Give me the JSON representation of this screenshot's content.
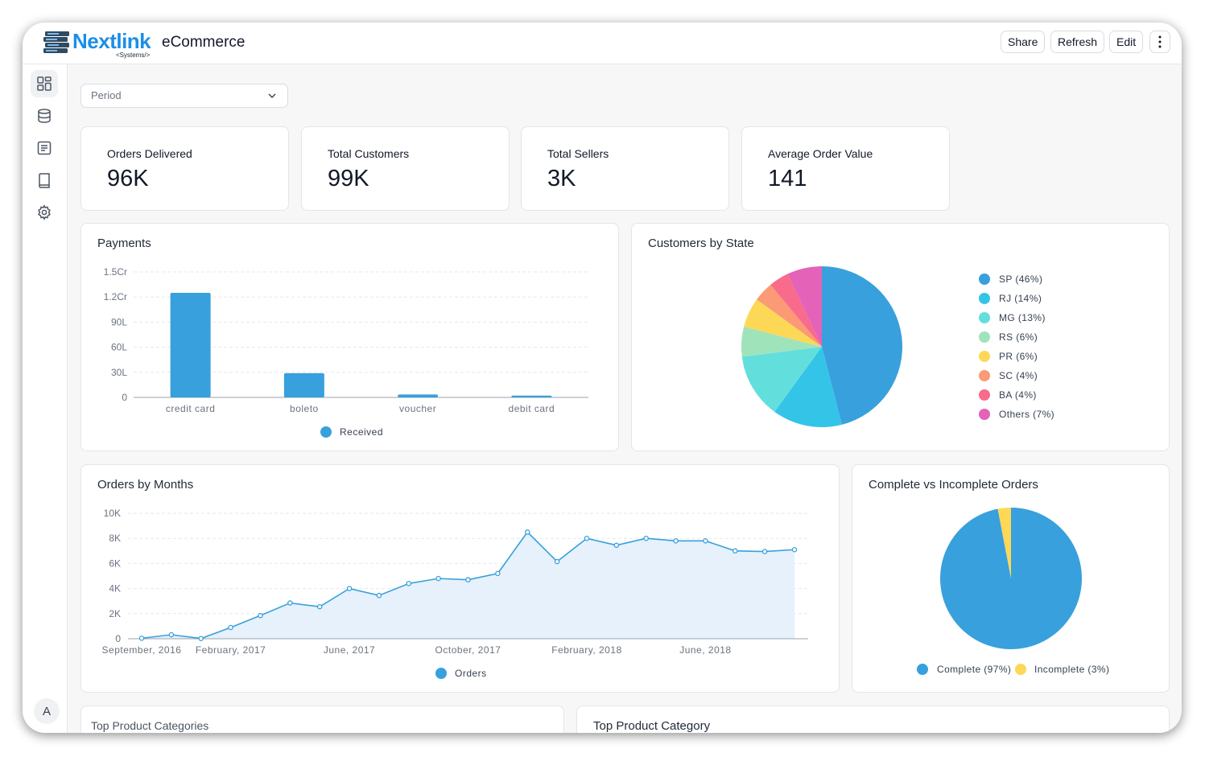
{
  "header": {
    "logo_text": "Nextlink",
    "logo_subtext": "<Systems/>",
    "app_title": "eCommerce",
    "buttons": {
      "share": "Share",
      "refresh": "Refresh",
      "edit": "Edit"
    }
  },
  "sidebar": {
    "icons": [
      "dashboard-icon",
      "database-icon",
      "list-icon",
      "book-icon",
      "gear-icon"
    ],
    "avatar_initial": "A"
  },
  "filters": {
    "period_placeholder": "Period"
  },
  "kpis": [
    {
      "label": "Orders Delivered",
      "value": "96K"
    },
    {
      "label": "Total Customers",
      "value": "99K"
    },
    {
      "label": "Total Sellers",
      "value": "3K"
    },
    {
      "label": "Average Order Value",
      "value": "141"
    }
  ],
  "cards": {
    "payments_title": "Payments",
    "customers_title": "Customers by State",
    "orders_title": "Orders by Months",
    "complete_title": "Complete vs Incomplete Orders",
    "top_categories_title": "Top Product Categories",
    "top_category_title": "Top Product Category"
  },
  "chart_data": [
    {
      "type": "bar",
      "title": "Payments",
      "categories": [
        "credit card",
        "boleto",
        "voucher",
        "debit card"
      ],
      "series": [
        {
          "name": "Received",
          "values": [
            12500000,
            2900000,
            350000,
            220000
          ]
        }
      ],
      "yticks": [
        "0",
        "30L",
        "60L",
        "90L",
        "1.2Cr",
        "1.5Cr"
      ],
      "ylim": [
        0,
        15000000
      ],
      "color": "#38a0dc"
    },
    {
      "type": "pie",
      "title": "Customers by State",
      "slices": [
        {
          "label": "SP (46%)",
          "value": 46,
          "color": "#38a0dc"
        },
        {
          "label": "RJ (14%)",
          "value": 14,
          "color": "#34c4e8"
        },
        {
          "label": "MG (13%)",
          "value": 13,
          "color": "#62dedd"
        },
        {
          "label": "RS (6%)",
          "value": 6,
          "color": "#9fe3bb"
        },
        {
          "label": "PR (6%)",
          "value": 6,
          "color": "#fcd856"
        },
        {
          "label": "SC (4%)",
          "value": 4,
          "color": "#fb9a74"
        },
        {
          "label": "BA (4%)",
          "value": 4,
          "color": "#f86b8b"
        },
        {
          "label": "Others (7%)",
          "value": 7,
          "color": "#e462b7"
        }
      ]
    },
    {
      "type": "area",
      "title": "Orders by Months",
      "series": [
        {
          "name": "Orders",
          "values": [
            40,
            320,
            20,
            900,
            1850,
            2850,
            2550,
            4000,
            3450,
            4400,
            4800,
            4700,
            5200,
            8500,
            6150,
            8000,
            7450,
            8000,
            7800,
            7800,
            7000,
            6950,
            7100
          ]
        }
      ],
      "xticks": [
        "September, 2016",
        "February, 2017",
        "June, 2017",
        "October, 2017",
        "February, 2018",
        "June, 2018"
      ],
      "xtick_indices": [
        0,
        3,
        7,
        11,
        15,
        19
      ],
      "yticks": [
        "0",
        "2K",
        "4K",
        "6K",
        "8K",
        "10K"
      ],
      "ylim": [
        0,
        10000
      ],
      "color": "#38a0dc"
    },
    {
      "type": "pie",
      "title": "Complete vs Incomplete Orders",
      "slices": [
        {
          "label": "Complete (97%)",
          "value": 97,
          "color": "#38a0dc"
        },
        {
          "label": "Incomplete (3%)",
          "value": 3,
          "color": "#fcd856"
        }
      ]
    }
  ]
}
